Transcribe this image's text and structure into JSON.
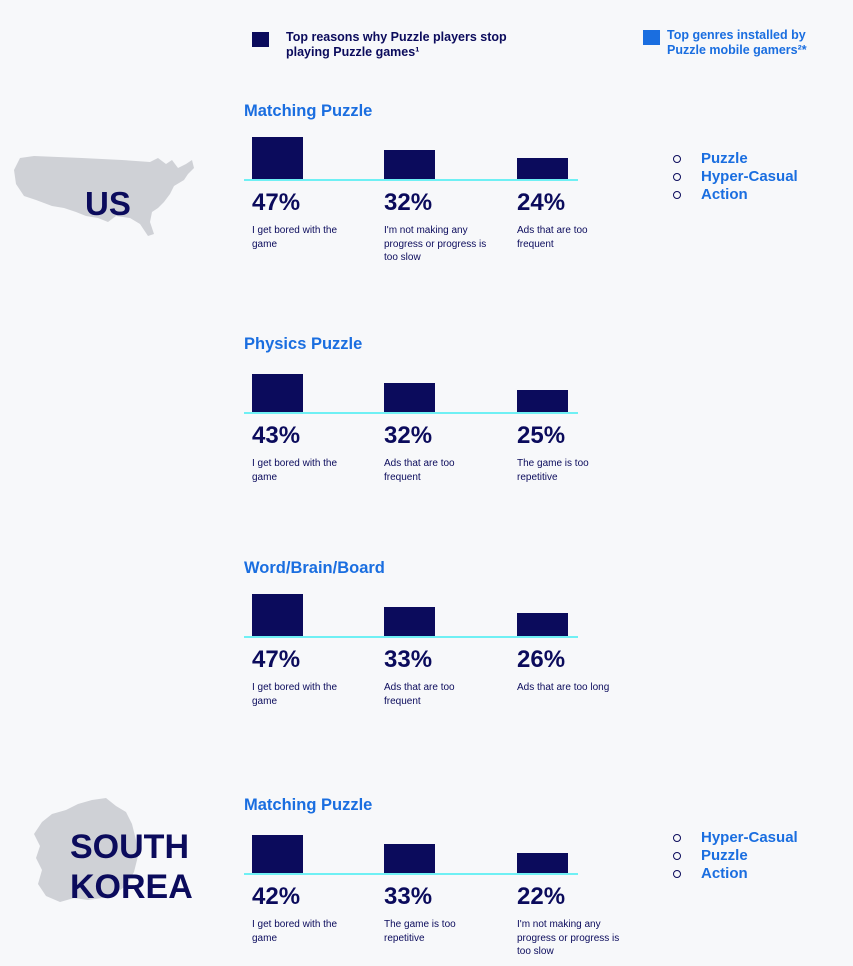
{
  "legend": {
    "reasons": "Top reasons why Puzzle players stop playing Puzzle games¹",
    "genres": "Top genres installed by Puzzle mobile gamers²*",
    "reasons_color": "#0b0b5c",
    "genres_color": "#1a6ee0"
  },
  "countries": [
    {
      "name": "US",
      "genres": [
        "Puzzle",
        "Hyper-Casual",
        "Action"
      ]
    },
    {
      "name": "SOUTH KOREA",
      "line1": "SOUTH",
      "line2": "KOREA",
      "genres": [
        "Hyper-Casual",
        "Puzzle",
        "Action"
      ]
    }
  ],
  "chart_data": [
    {
      "type": "bar",
      "country": "US",
      "title": "Matching Puzzle",
      "categories": [
        "I get bored with the game",
        "I'm not making any progress or progress is too slow",
        "Ads that are too frequent"
      ],
      "values": [
        47,
        32,
        24
      ],
      "labels": [
        "47%",
        "32%",
        "24%"
      ],
      "ylim": [
        0,
        47
      ]
    },
    {
      "type": "bar",
      "country": "US",
      "title": "Physics Puzzle",
      "categories": [
        "I get bored with the game",
        "Ads that are too frequent",
        "The game is too repetitive"
      ],
      "values": [
        43,
        32,
        25
      ],
      "labels": [
        "43%",
        "32%",
        "25%"
      ],
      "ylim": [
        0,
        47
      ]
    },
    {
      "type": "bar",
      "country": "US",
      "title": "Word/Brain/Board",
      "categories": [
        "I get bored with the game",
        "Ads that are too frequent",
        "Ads that are too long"
      ],
      "values": [
        47,
        33,
        26
      ],
      "labels": [
        "47%",
        "33%",
        "26%"
      ],
      "ylim": [
        0,
        47
      ]
    },
    {
      "type": "bar",
      "country": "SOUTH KOREA",
      "title": "Matching Puzzle",
      "categories": [
        "I get bored with the game",
        "The game is too repetitive",
        "I'm not making any progress or progress is too slow"
      ],
      "values": [
        42,
        33,
        22
      ],
      "labels": [
        "42%",
        "33%",
        "22%"
      ],
      "ylim": [
        0,
        47
      ]
    }
  ]
}
